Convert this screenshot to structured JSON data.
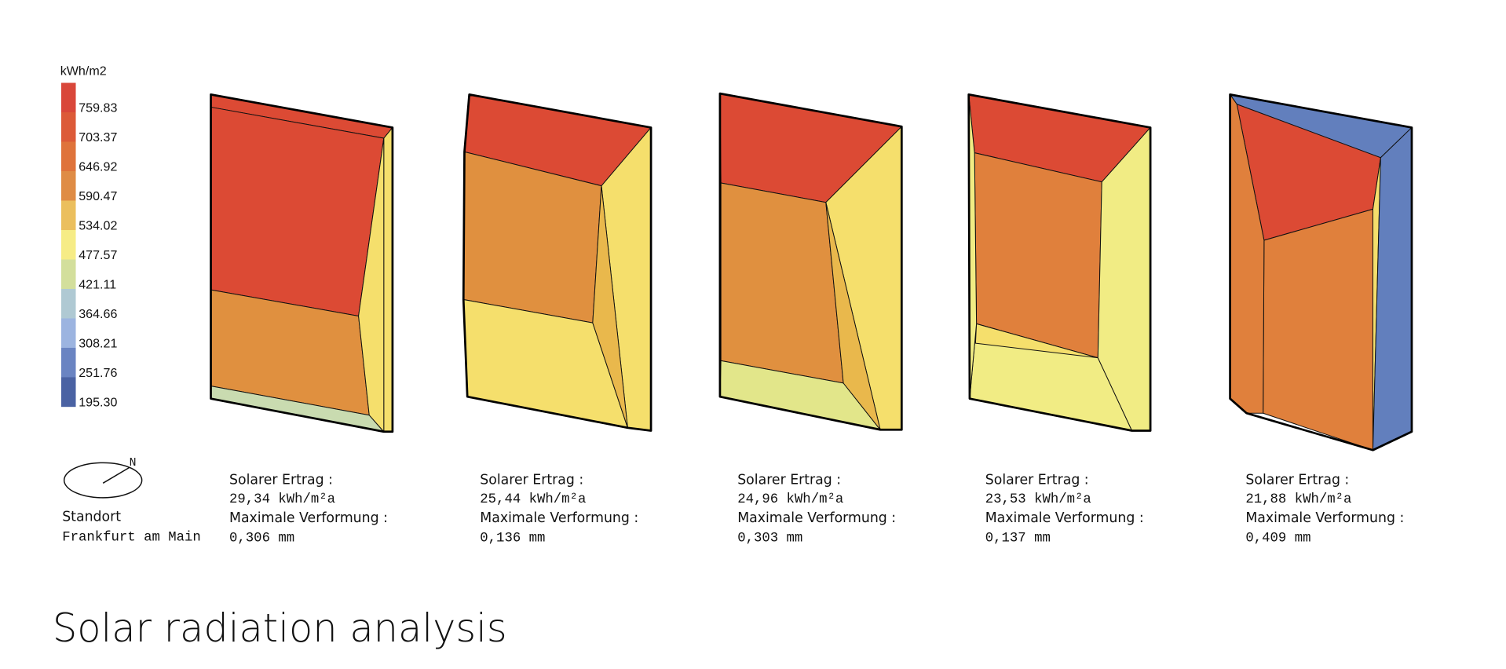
{
  "legend": {
    "unit": "kWh/m2",
    "items": [
      {
        "label": "759.83",
        "color": "#d9473a"
      },
      {
        "label": "703.37",
        "color": "#dc5a38"
      },
      {
        "label": "646.92",
        "color": "#df733b"
      },
      {
        "label": "590.47",
        "color": "#df8c45"
      },
      {
        "label": "534.02",
        "color": "#ebbf5e"
      },
      {
        "label": "477.57",
        "color": "#f6ec86"
      },
      {
        "label": "421.11",
        "color": "#d3df9c"
      },
      {
        "label": "364.66",
        "color": "#afc9d3"
      },
      {
        "label": "308.21",
        "color": "#9cb4e0"
      },
      {
        "label": "251.76",
        "color": "#6a84c2"
      },
      {
        "label": "195.30",
        "color": "#4a62a3"
      }
    ]
  },
  "location": {
    "north": "N",
    "label": "Standort",
    "city": "Frankfurt am Main"
  },
  "panels": [
    {
      "yield_label": "Solarer Ertrag :",
      "yield": "29,34 kWh/m²a",
      "deformation_label": "Maximale Verformung :",
      "deformation": "0,306 mm"
    },
    {
      "yield_label": "Solarer Ertrag :",
      "yield": "25,44 kWh/m²a",
      "deformation_label": "Maximale Verformung :",
      "deformation": "0,136 mm"
    },
    {
      "yield_label": "Solarer Ertrag :",
      "yield": "24,96 kWh/m²a",
      "deformation_label": "Maximale Verformung :",
      "deformation": "0,303 mm"
    },
    {
      "yield_label": "Solarer Ertrag :",
      "yield": "23,53 kWh/m²a",
      "deformation_label": "Maximale Verformung :",
      "deformation": "0,137 mm"
    },
    {
      "yield_label": "Solarer Ertrag :",
      "yield": "21,88 kWh/m²a",
      "deformation_label": "Maximale Verformung :",
      "deformation": "0,409 mm"
    }
  ],
  "title": "Solar radiation analysis"
}
